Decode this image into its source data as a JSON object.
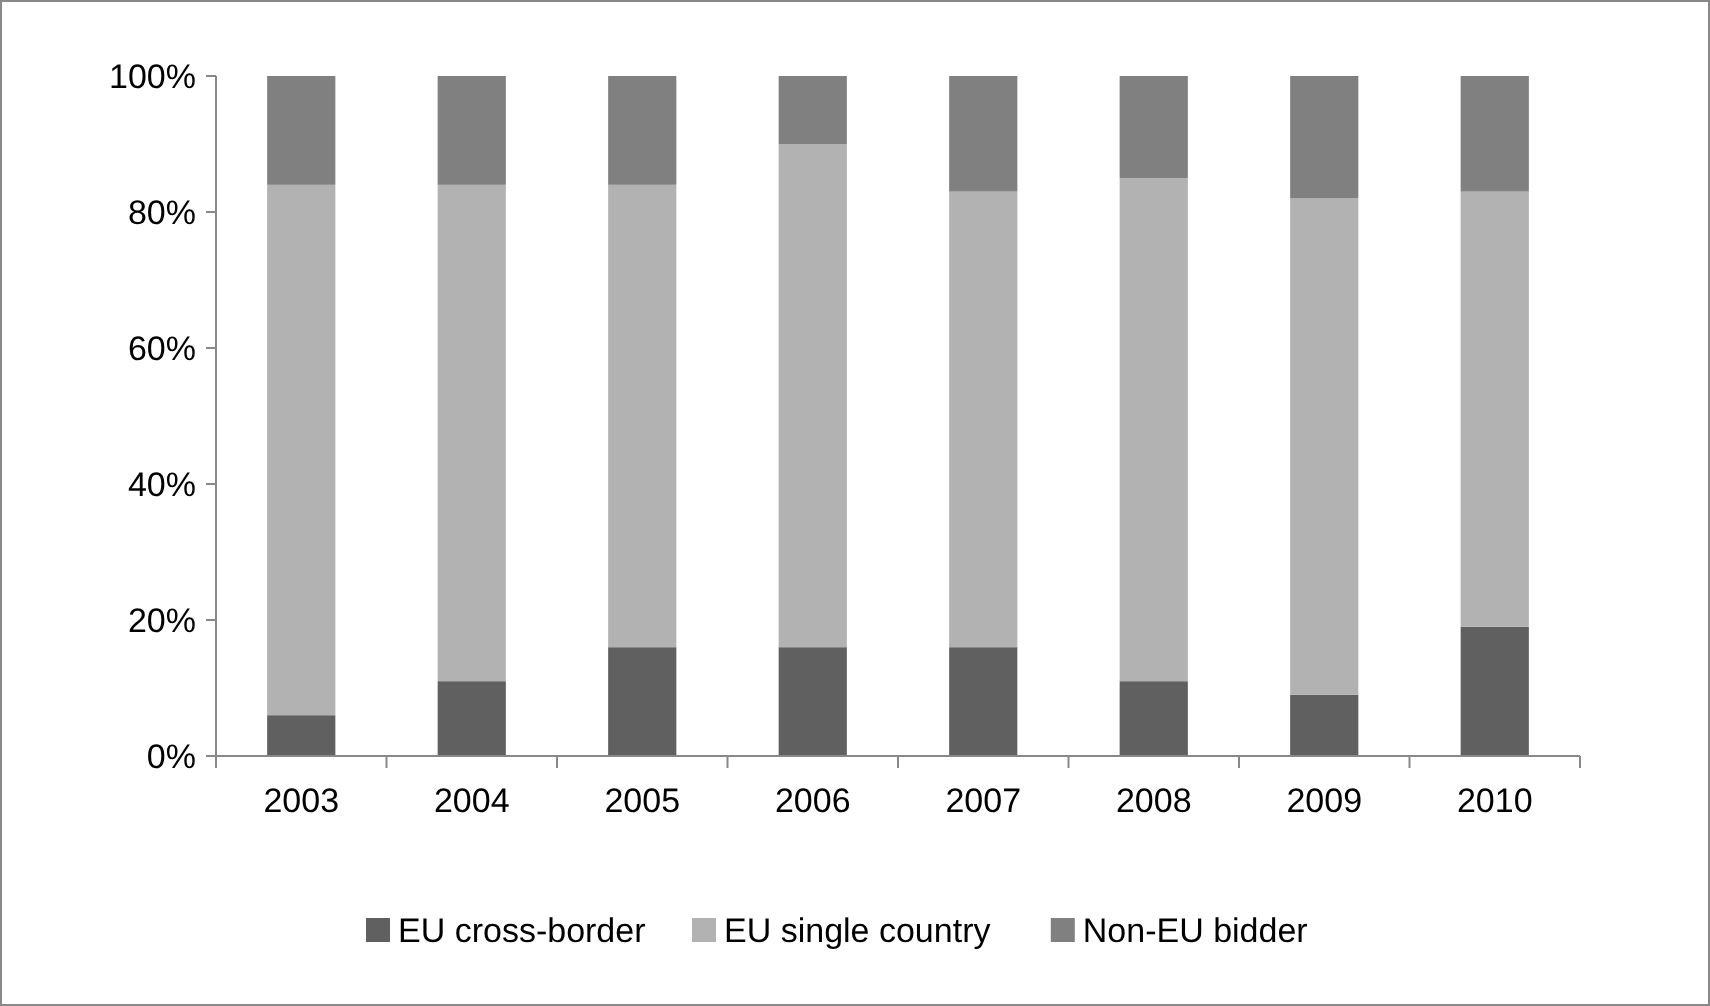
{
  "chart_data": {
    "type": "bar",
    "stacked": true,
    "categories": [
      "2003",
      "2004",
      "2005",
      "2006",
      "2007",
      "2008",
      "2009",
      "2010"
    ],
    "series": [
      {
        "name": "EU cross-border",
        "color": "#606060",
        "values": [
          6,
          11,
          16,
          16,
          16,
          11,
          9,
          19
        ]
      },
      {
        "name": "EU single country",
        "color": "#b2b2b2",
        "values": [
          78,
          73,
          68,
          74,
          67,
          74,
          73,
          64
        ]
      },
      {
        "name": "Non-EU bidder",
        "color": "#808080",
        "values": [
          16,
          16,
          16,
          10,
          17,
          15,
          18,
          17
        ]
      }
    ],
    "ylim": [
      0,
      100
    ],
    "yticks": [
      {
        "value": 0,
        "label": "0%"
      },
      {
        "value": 20,
        "label": "20%"
      },
      {
        "value": 40,
        "label": "40%"
      },
      {
        "value": 60,
        "label": "60%"
      },
      {
        "value": 80,
        "label": "80%"
      },
      {
        "value": 100,
        "label": "100%"
      }
    ],
    "grid": false,
    "legend": "bottom"
  }
}
